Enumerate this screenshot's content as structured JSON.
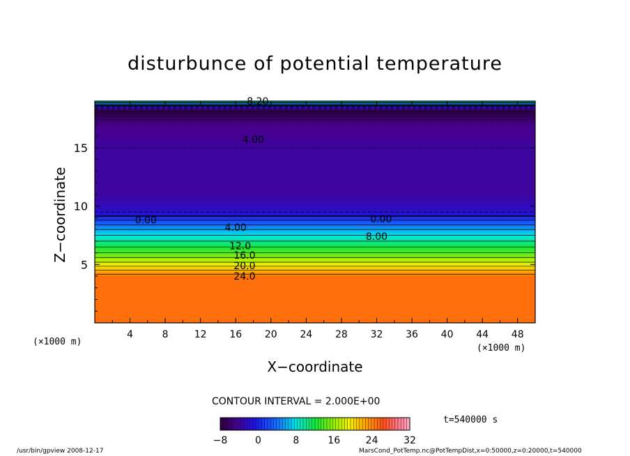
{
  "page": {
    "title": "disturbunce of potential temperature",
    "xlabel": "X−coordinate",
    "ylabel": "Z−coordinate",
    "x_unit_left": "(×1000 m)",
    "x_unit_right": "(×1000 m)",
    "contour_interval": "CONTOUR INTERVAL = 2.000E+00",
    "time_label": "t=540000 s",
    "footer_left": "/usr/bin/gpview   2008-12-17",
    "footer_right": "MarsCond_PotTemp.nc@PotTempDist,x=0:50000,z=0:20000,t=540000"
  },
  "chart_data": {
    "type": "heatmap",
    "title": "disturbunce of potential temperature",
    "xlabel": "X−coordinate",
    "ylabel": "Z−coordinate",
    "x_unit": "×1000 m",
    "xlim": [
      0,
      50
    ],
    "ylim": [
      0,
      19
    ],
    "x_ticks": [
      4,
      8,
      12,
      16,
      20,
      24,
      28,
      32,
      36,
      40,
      44,
      48
    ],
    "y_ticks": [
      5,
      10,
      15
    ],
    "colorbar": {
      "min": -8,
      "max": 32,
      "ticks": [
        -8,
        0,
        8,
        16,
        24,
        32
      ]
    },
    "contour_interval": 2.0,
    "contour_labels": [
      {
        "text": "8.20",
        "x": 18.5,
        "z": 19.0
      },
      {
        "text": "4.00",
        "x": 18.0,
        "z": 15.7
      },
      {
        "text": "0.00",
        "x": 5.8,
        "z": 8.8
      },
      {
        "text": "4.00",
        "x": 16.0,
        "z": 8.2
      },
      {
        "text": "0.00",
        "x": 32.5,
        "z": 8.9
      },
      {
        "text": "8.00",
        "x": 32.0,
        "z": 7.4
      },
      {
        "text": "12.0",
        "x": 16.5,
        "z": 6.6
      },
      {
        "text": "16.0",
        "x": 17.0,
        "z": 5.8
      },
      {
        "text": "20.0",
        "x": 17.0,
        "z": 4.9
      },
      {
        "text": "24.0",
        "x": 17.0,
        "z": 4.0
      }
    ],
    "profile": [
      {
        "z": 0.0,
        "value": 25
      },
      {
        "z": 4.0,
        "value": 25
      },
      {
        "z": 4.5,
        "value": 22
      },
      {
        "z": 5.2,
        "value": 18
      },
      {
        "z": 6.0,
        "value": 14
      },
      {
        "z": 7.0,
        "value": 10
      },
      {
        "z": 8.0,
        "value": 6
      },
      {
        "z": 8.8,
        "value": 2
      },
      {
        "z": 9.5,
        "value": -2
      },
      {
        "z": 11.0,
        "value": -4
      },
      {
        "z": 15.0,
        "value": -4
      },
      {
        "z": 17.0,
        "value": -5
      },
      {
        "z": 17.8,
        "value": -7
      },
      {
        "z": 18.2,
        "value": -8
      },
      {
        "z": 18.6,
        "value": 0
      },
      {
        "z": 19.0,
        "value": 10
      }
    ]
  }
}
